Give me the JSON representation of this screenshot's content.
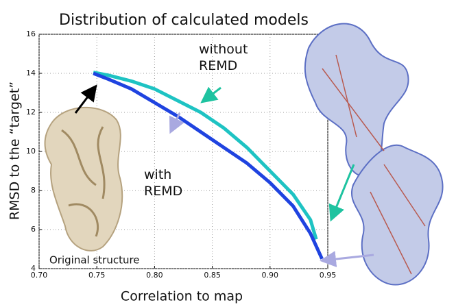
{
  "chart_data": {
    "type": "line",
    "title": "Distribution of calculated models",
    "xlabel": "Correlation to map",
    "ylabel": "RMSD to the “target”",
    "annotations": [
      "Original structure"
    ],
    "xlim": [
      0.7,
      0.95
    ],
    "xticks": [
      {
        "value": 0.7,
        "label": "0.70"
      },
      0.75,
      {
        "value": 0.8,
        "label": "0.80"
      },
      0.85,
      {
        "value": 0.9,
        "label": "0.90"
      },
      0.95
    ],
    "ylim": [
      4,
      16
    ],
    "yticks": [
      4,
      6,
      8,
      10,
      12,
      14,
      16
    ],
    "grid": true,
    "series": [
      {
        "name": "without REMD",
        "color": "#1ec3c3",
        "x": [
          0.747,
          0.76,
          0.78,
          0.8,
          0.82,
          0.84,
          0.86,
          0.88,
          0.9,
          0.92,
          0.935,
          0.94
        ],
        "values": [
          14.05,
          13.9,
          13.6,
          13.2,
          12.6,
          12.0,
          11.2,
          10.2,
          9.0,
          7.8,
          6.5,
          5.5
        ]
      },
      {
        "name": "with REMD",
        "color": "#1f43e0",
        "x": [
          0.747,
          0.76,
          0.78,
          0.8,
          0.82,
          0.84,
          0.86,
          0.88,
          0.9,
          0.92,
          0.935,
          0.945
        ],
        "values": [
          14.0,
          13.7,
          13.2,
          12.5,
          11.8,
          11.0,
          10.2,
          9.4,
          8.4,
          7.2,
          5.8,
          4.5
        ]
      }
    ]
  }
}
